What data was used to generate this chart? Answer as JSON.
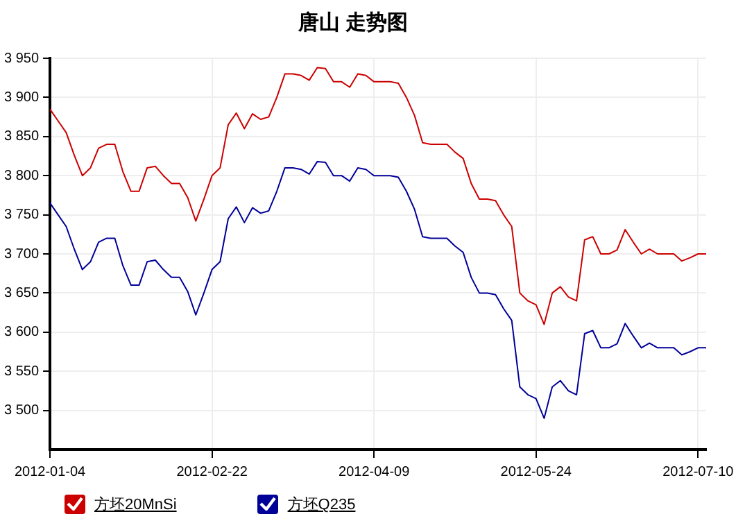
{
  "chart_data": {
    "type": "line",
    "title": "唐山 走势图",
    "categories": [
      "2012-01-04",
      null,
      null,
      null,
      null,
      null,
      null,
      null,
      null,
      null,
      null,
      null,
      null,
      null,
      null,
      null,
      null,
      null,
      null,
      null,
      "2012-02-22",
      null,
      null,
      null,
      null,
      null,
      null,
      null,
      null,
      null,
      null,
      null,
      null,
      null,
      null,
      null,
      null,
      null,
      null,
      null,
      "2012-04-09",
      null,
      null,
      null,
      null,
      null,
      null,
      null,
      null,
      null,
      null,
      null,
      null,
      null,
      null,
      null,
      null,
      null,
      null,
      null,
      "2012-05-24",
      null,
      null,
      null,
      null,
      null,
      null,
      null,
      null,
      null,
      null,
      null,
      null,
      null,
      null,
      null,
      null,
      null,
      null,
      null,
      "2012-07-10",
      null
    ],
    "series": [
      {
        "name": "方坯20MnSi",
        "color": "#cc0000",
        "values": [
          3885,
          3870,
          3855,
          3826,
          3800,
          3810,
          3835,
          3840,
          3840,
          3805,
          3780,
          3780,
          3810,
          3812,
          3800,
          3790,
          3790,
          3772,
          3742,
          3770,
          3800,
          3810,
          3865,
          3880,
          3860,
          3879,
          3872,
          3875,
          3900,
          3930,
          3930,
          3928,
          3922,
          3938,
          3937,
          3920,
          3920,
          3913,
          3930,
          3928,
          3920,
          3920,
          3920,
          3918,
          3900,
          3877,
          3842,
          3840,
          3840,
          3840,
          3830,
          3822,
          3790,
          3770,
          3770,
          3768,
          3750,
          3735,
          3650,
          3640,
          3635,
          3610,
          3650,
          3658,
          3645,
          3640,
          3718,
          3722,
          3700,
          3700,
          3705,
          3731,
          3715,
          3700,
          3706,
          3700,
          3700,
          3700,
          3691,
          3695,
          3700,
          3700
        ]
      },
      {
        "name": "方坯Q235",
        "color": "#000099",
        "values": [
          3765,
          3750,
          3735,
          3706,
          3680,
          3690,
          3715,
          3720,
          3720,
          3685,
          3660,
          3660,
          3690,
          3692,
          3680,
          3670,
          3670,
          3652,
          3622,
          3650,
          3680,
          3690,
          3745,
          3760,
          3740,
          3759,
          3752,
          3755,
          3780,
          3810,
          3810,
          3808,
          3802,
          3818,
          3817,
          3800,
          3800,
          3793,
          3810,
          3808,
          3800,
          3800,
          3800,
          3798,
          3780,
          3757,
          3722,
          3720,
          3720,
          3720,
          3710,
          3702,
          3670,
          3650,
          3650,
          3648,
          3630,
          3615,
          3530,
          3520,
          3515,
          3490,
          3530,
          3538,
          3525,
          3520,
          3598,
          3602,
          3580,
          3580,
          3585,
          3611,
          3595,
          3580,
          3586,
          3580,
          3580,
          3580,
          3571,
          3575,
          3580,
          3580
        ]
      }
    ],
    "ylim": [
      3450,
      3950
    ],
    "yticks": [
      {
        "value": 3500,
        "label": "3 500"
      },
      {
        "value": 3550,
        "label": "3 550"
      },
      {
        "value": 3600,
        "label": "3 600"
      },
      {
        "value": 3650,
        "label": "3 650"
      },
      {
        "value": 3700,
        "label": "3 700"
      },
      {
        "value": 3750,
        "label": "3 750"
      },
      {
        "value": 3800,
        "label": "3 800"
      },
      {
        "value": 3850,
        "label": "3 850"
      },
      {
        "value": 3900,
        "label": "3 900"
      },
      {
        "value": 3950,
        "label": "3 950"
      }
    ],
    "grid": true,
    "legend": "bottom left",
    "marker": "none",
    "line_style": "solid"
  }
}
